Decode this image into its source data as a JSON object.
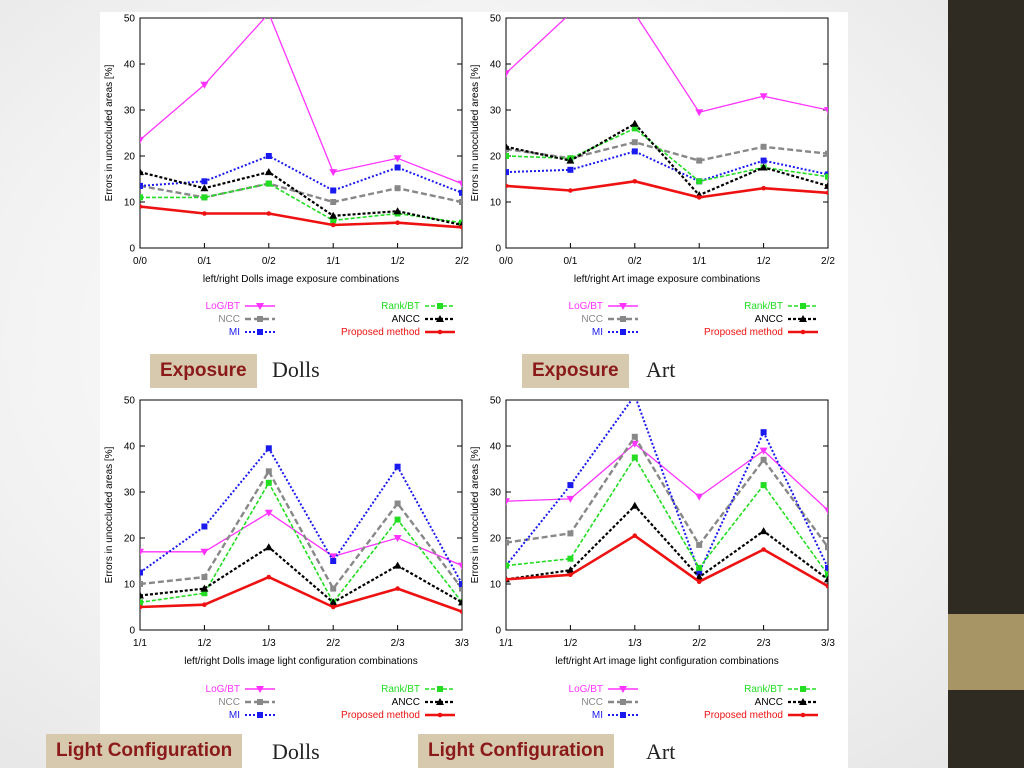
{
  "slide": {
    "labels": [
      "Exposure",
      "Exposure",
      "Light Configuration",
      "Light Configuration"
    ],
    "captions": [
      "Dolls",
      "Art",
      "Dolls",
      "Art"
    ]
  },
  "colors": {
    "LoG/BT": "#ff33ff",
    "NCC": "#888888",
    "MI": "#1a1aee",
    "Rank/BT": "#22dd22",
    "ANCC": "#000000",
    "Proposed method": "#ee1111"
  },
  "legend_left": [
    "LoG/BT",
    "NCC",
    "MI"
  ],
  "legend_right": [
    "Rank/BT",
    "ANCC",
    "Proposed method"
  ],
  "chart_data": [
    {
      "type": "line",
      "xlabel": "left/right Dolls image exposure combinations",
      "ylabel": "Errors in unoccluded areas [%]",
      "categories": [
        "0/0",
        "0/1",
        "0/2",
        "1/1",
        "1/2",
        "2/2"
      ],
      "ylim": [
        0,
        50
      ],
      "yticks": [
        0,
        10,
        20,
        30,
        40,
        50
      ],
      "series": [
        {
          "name": "LoG/BT",
          "values": [
            23.5,
            35.5,
            51,
            16.5,
            19.5,
            14
          ]
        },
        {
          "name": "NCC",
          "values": [
            13.5,
            11,
            14,
            10,
            13,
            10
          ]
        },
        {
          "name": "MI",
          "values": [
            13.5,
            14.5,
            20,
            12.5,
            17.5,
            12
          ]
        },
        {
          "name": "Rank/BT",
          "values": [
            11,
            11,
            14,
            6,
            7.5,
            5.5
          ]
        },
        {
          "name": "ANCC",
          "values": [
            16.5,
            13,
            16.5,
            7,
            8,
            5
          ]
        },
        {
          "name": "Proposed method",
          "values": [
            9,
            7.5,
            7.5,
            5,
            5.5,
            4.5
          ]
        }
      ]
    },
    {
      "type": "line",
      "xlabel": "left/right Art image exposure combinations",
      "ylabel": "Errors in unoccluded areas [%]",
      "categories": [
        "0/0",
        "0/1",
        "0/2",
        "1/1",
        "1/2",
        "2/2"
      ],
      "ylim": [
        0,
        50
      ],
      "yticks": [
        0,
        10,
        20,
        30,
        40,
        50
      ],
      "series": [
        {
          "name": "LoG/BT",
          "values": [
            38,
            51,
            51,
            29.5,
            33,
            30
          ]
        },
        {
          "name": "NCC",
          "values": [
            21.5,
            19.5,
            23,
            19,
            22,
            20.5
          ]
        },
        {
          "name": "MI",
          "values": [
            16.5,
            17,
            21,
            14.5,
            19,
            16
          ]
        },
        {
          "name": "Rank/BT",
          "values": [
            20,
            19.5,
            26,
            14.5,
            17.5,
            15.5
          ]
        },
        {
          "name": "ANCC",
          "values": [
            22,
            19,
            27,
            11.5,
            17.5,
            13.5
          ]
        },
        {
          "name": "Proposed method",
          "values": [
            13.5,
            12.5,
            14.5,
            11,
            13,
            12
          ]
        }
      ]
    },
    {
      "type": "line",
      "xlabel": "left/right Dolls image light configuration combinations",
      "ylabel": "Errors in unoccluded areas [%]",
      "categories": [
        "1/1",
        "1/2",
        "1/3",
        "2/2",
        "2/3",
        "3/3"
      ],
      "ylim": [
        0,
        50
      ],
      "yticks": [
        0,
        10,
        20,
        30,
        40,
        50
      ],
      "series": [
        {
          "name": "LoG/BT",
          "values": [
            17,
            17,
            25.5,
            16,
            20,
            14
          ]
        },
        {
          "name": "NCC",
          "values": [
            10,
            11.5,
            34.5,
            9,
            27.5,
            9
          ]
        },
        {
          "name": "MI",
          "values": [
            12.5,
            22.5,
            39.5,
            15,
            35.5,
            10
          ]
        },
        {
          "name": "Rank/BT",
          "values": [
            6,
            8,
            32,
            6,
            24,
            6
          ]
        },
        {
          "name": "ANCC",
          "values": [
            7.5,
            9,
            18,
            6,
            14,
            6
          ]
        },
        {
          "name": "Proposed method",
          "values": [
            5,
            5.5,
            11.5,
            5,
            9,
            4
          ]
        }
      ]
    },
    {
      "type": "line",
      "xlabel": "left/right Art image light configuration combinations",
      "ylabel": "Errors in unoccluded areas [%]",
      "categories": [
        "1/1",
        "1/2",
        "1/3",
        "2/2",
        "2/3",
        "3/3"
      ],
      "ylim": [
        0,
        50
      ],
      "yticks": [
        0,
        10,
        20,
        30,
        40,
        50
      ],
      "series": [
        {
          "name": "LoG/BT",
          "values": [
            28,
            28.5,
            40.5,
            29,
            39,
            26
          ]
        },
        {
          "name": "NCC",
          "values": [
            19,
            21,
            42,
            18.5,
            37,
            18
          ]
        },
        {
          "name": "MI",
          "values": [
            14,
            31.5,
            51,
            12.5,
            43,
            13.5
          ]
        },
        {
          "name": "Rank/BT",
          "values": [
            14,
            15.5,
            37.5,
            13.5,
            31.5,
            12
          ]
        },
        {
          "name": "ANCC",
          "values": [
            11,
            13,
            27,
            11.5,
            21.5,
            11
          ]
        },
        {
          "name": "Proposed method",
          "values": [
            11,
            12,
            20.5,
            10.5,
            17.5,
            9.5
          ]
        }
      ]
    }
  ]
}
